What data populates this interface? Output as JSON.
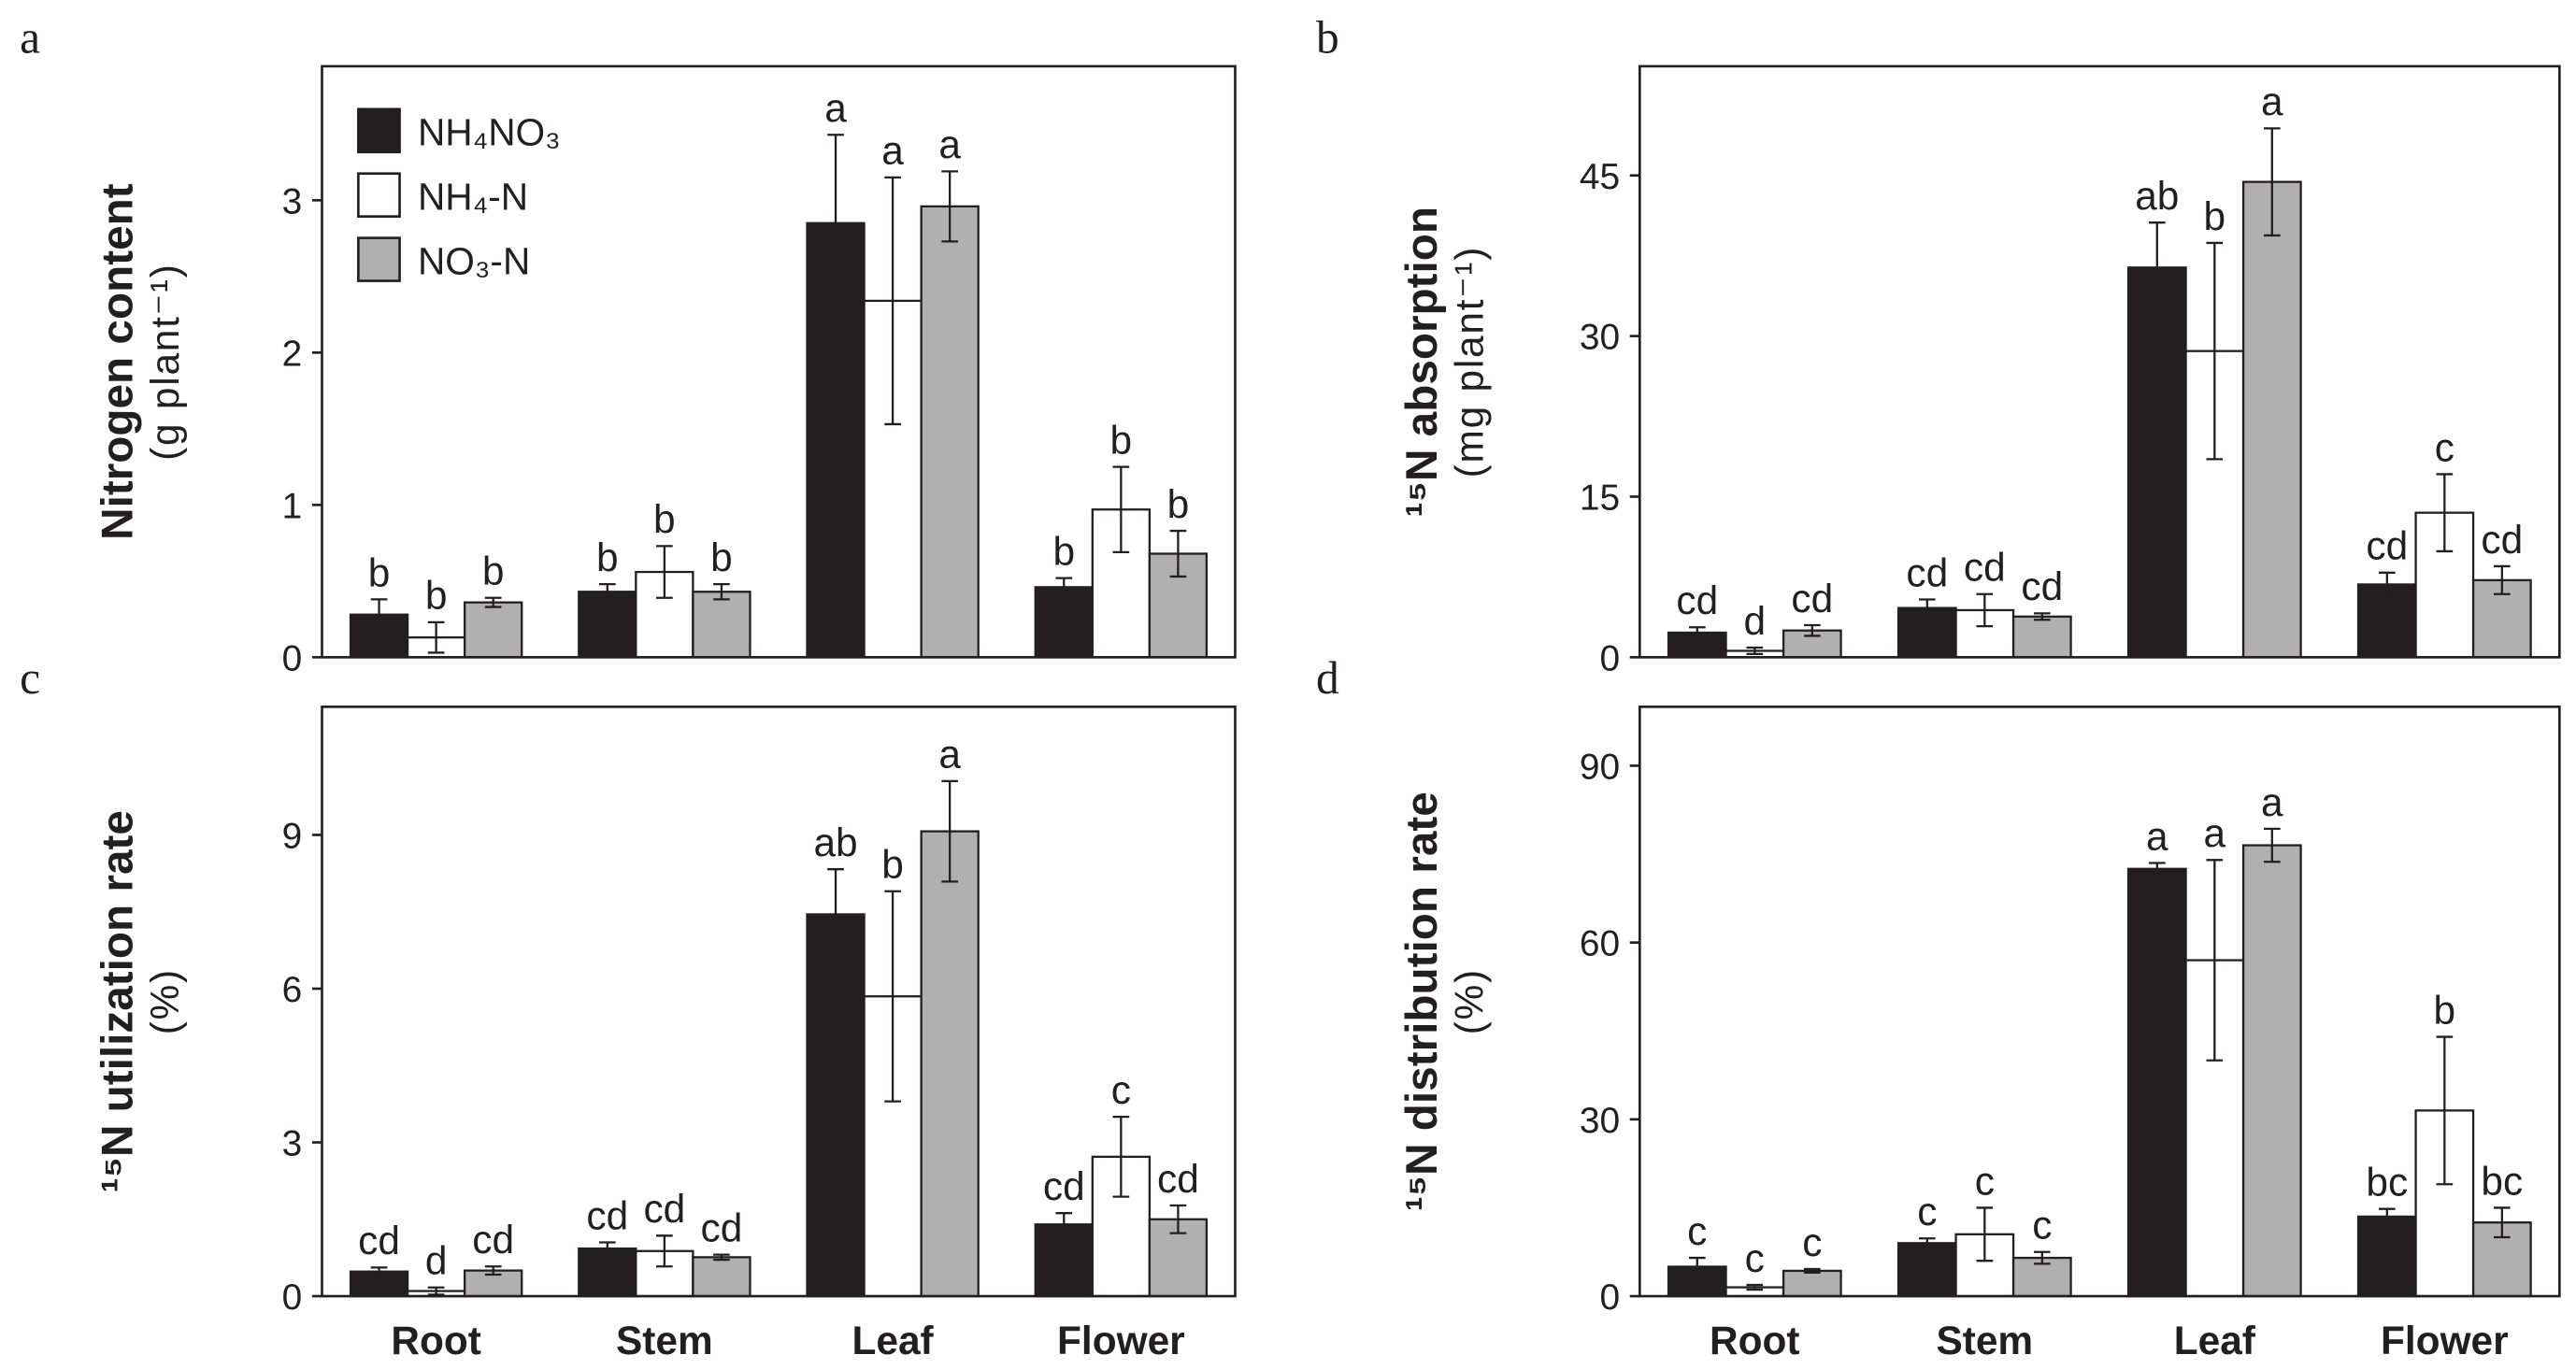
{
  "legend": [
    {
      "label": "NH₄NO₃",
      "color": "#231f20"
    },
    {
      "label": "NH₄-N",
      "color": "#ffffff"
    },
    {
      "label": "NO₃-N",
      "color": "#b0b0b0"
    }
  ],
  "categories": [
    "Root",
    "Stem",
    "Leaf",
    "Flower"
  ],
  "chart_data": [
    {
      "panel": "a",
      "type": "bar",
      "ylabel": "Nitrogen content",
      "yunit": "(g plant⁻¹)",
      "ylim": [
        0,
        3.88
      ],
      "yticks": [
        0,
        1,
        2,
        3
      ],
      "categories": [
        "Root",
        "Stem",
        "Leaf",
        "Flower"
      ],
      "series": [
        {
          "name": "NH₄NO₃",
          "values": [
            0.28,
            0.43,
            2.85,
            0.46
          ],
          "errors": [
            0.1,
            0.05,
            0.58,
            0.06
          ],
          "letters": [
            "b",
            "b",
            "a",
            "b"
          ]
        },
        {
          "name": "NH₄-N",
          "values": [
            0.13,
            0.56,
            2.34,
            0.97
          ],
          "errors": [
            0.1,
            0.17,
            0.81,
            0.28
          ],
          "letters": [
            "b",
            "b",
            "a",
            "b"
          ]
        },
        {
          "name": "NO₃-N",
          "values": [
            0.36,
            0.43,
            2.96,
            0.68
          ],
          "errors": [
            0.03,
            0.05,
            0.23,
            0.15
          ],
          "letters": [
            "b",
            "b",
            "a",
            "b"
          ]
        }
      ]
    },
    {
      "panel": "b",
      "type": "bar",
      "ylabel": "¹⁵N absorption",
      "yunit": "(mg plant⁻¹)",
      "ylim": [
        0,
        55.2
      ],
      "yticks": [
        0,
        15,
        30,
        45
      ],
      "categories": [
        "Root",
        "Stem",
        "Leaf",
        "Flower"
      ],
      "series": [
        {
          "name": "NH₄NO₃",
          "values": [
            2.3,
            4.6,
            36.4,
            6.8
          ],
          "errors": [
            0.5,
            0.8,
            4.2,
            1.1
          ],
          "letters": [
            "cd",
            "cd",
            "ab",
            "cd"
          ]
        },
        {
          "name": "NH₄-N",
          "values": [
            0.6,
            4.4,
            28.6,
            13.5
          ],
          "errors": [
            0.3,
            1.5,
            10.1,
            3.6
          ],
          "letters": [
            "d",
            "cd",
            "b",
            "c"
          ]
        },
        {
          "name": "NO₃-N",
          "values": [
            2.5,
            3.8,
            44.4,
            7.2
          ],
          "errors": [
            0.5,
            0.3,
            5.0,
            1.3
          ],
          "letters": [
            "cd",
            "cd",
            "a",
            "cd"
          ]
        }
      ]
    },
    {
      "panel": "c",
      "type": "bar",
      "ylabel": "¹⁵N utilization rate",
      "yunit": "(%)",
      "ylim": [
        0,
        11.5
      ],
      "yticks": [
        0,
        3,
        6,
        9
      ],
      "categories": [
        "Root",
        "Stem",
        "Leaf",
        "Flower"
      ],
      "series": [
        {
          "name": "NH₄NO₃",
          "values": [
            0.48,
            0.93,
            7.45,
            1.4
          ],
          "errors": [
            0.08,
            0.12,
            0.88,
            0.22
          ],
          "letters": [
            "cd",
            "cd",
            "ab",
            "cd"
          ]
        },
        {
          "name": "NH₄-N",
          "values": [
            0.1,
            0.88,
            5.85,
            2.72
          ],
          "errors": [
            0.07,
            0.3,
            2.05,
            0.78
          ],
          "letters": [
            "d",
            "cd",
            "b",
            "c"
          ]
        },
        {
          "name": "NO₃-N",
          "values": [
            0.5,
            0.76,
            9.07,
            1.5
          ],
          "errors": [
            0.08,
            0.05,
            0.98,
            0.27
          ],
          "letters": [
            "cd",
            "cd",
            "a",
            "cd"
          ]
        }
      ]
    },
    {
      "panel": "d",
      "type": "bar",
      "ylabel": "¹⁵N distribution rate",
      "yunit": "(%)",
      "ylim": [
        0,
        100
      ],
      "yticks": [
        0,
        30,
        60,
        90
      ],
      "categories": [
        "Root",
        "Stem",
        "Leaf",
        "Flower"
      ],
      "series": [
        {
          "name": "NH₄NO₃",
          "values": [
            5.0,
            9.0,
            72.5,
            13.5
          ],
          "errors": [
            1.5,
            0.8,
            1.0,
            1.3
          ],
          "letters": [
            "c",
            "c",
            "a",
            "bc"
          ]
        },
        {
          "name": "NH₄-N",
          "values": [
            1.5,
            10.5,
            57.0,
            31.5
          ],
          "errors": [
            0.4,
            4.5,
            17.0,
            12.5
          ],
          "letters": [
            "c",
            "c",
            "a",
            "b"
          ]
        },
        {
          "name": "NO₃-N",
          "values": [
            4.3,
            6.5,
            76.5,
            12.5
          ],
          "errors": [
            0.3,
            1.0,
            2.8,
            2.5
          ],
          "letters": [
            "c",
            "c",
            "a",
            "bc"
          ]
        }
      ]
    }
  ]
}
